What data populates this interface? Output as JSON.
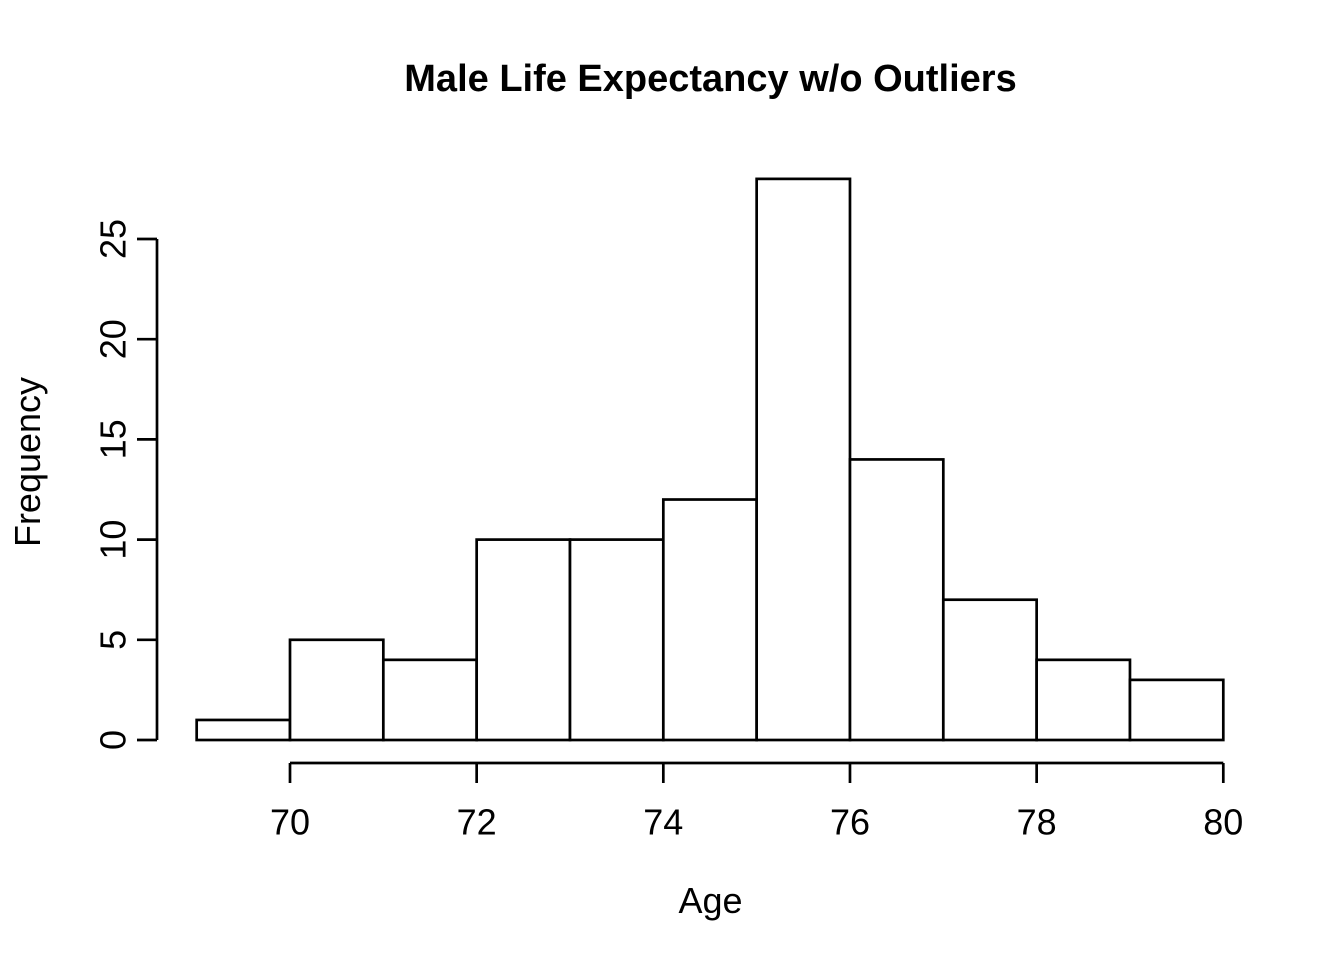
{
  "page": {
    "background": "#ffffff"
  },
  "chart_data": {
    "type": "bar",
    "variant": "histogram",
    "title": "Male Life Expectancy w/o Outliers",
    "xlabel": "Age",
    "ylabel": "Frequency",
    "bin_edges": [
      69,
      70,
      71,
      72,
      73,
      74,
      75,
      76,
      77,
      78,
      79,
      80
    ],
    "counts": [
      1,
      5,
      4,
      10,
      10,
      12,
      28,
      14,
      7,
      4,
      3
    ],
    "x_tick_values": [
      70,
      72,
      74,
      76,
      78,
      80
    ],
    "x_tick_labels": [
      "70",
      "72",
      "74",
      "76",
      "78",
      "80"
    ],
    "y_tick_values": [
      0,
      5,
      10,
      15,
      20,
      25
    ],
    "y_tick_labels": [
      "0",
      "5",
      "10",
      "15",
      "20",
      "25"
    ],
    "xlim": [
      69,
      80
    ],
    "ylim": [
      0,
      28
    ],
    "grid": false,
    "legend_position": "none",
    "axis_color": "#000000",
    "bar_fill": "#ffffff",
    "bar_border": "#000000",
    "text_color": "#000000"
  }
}
